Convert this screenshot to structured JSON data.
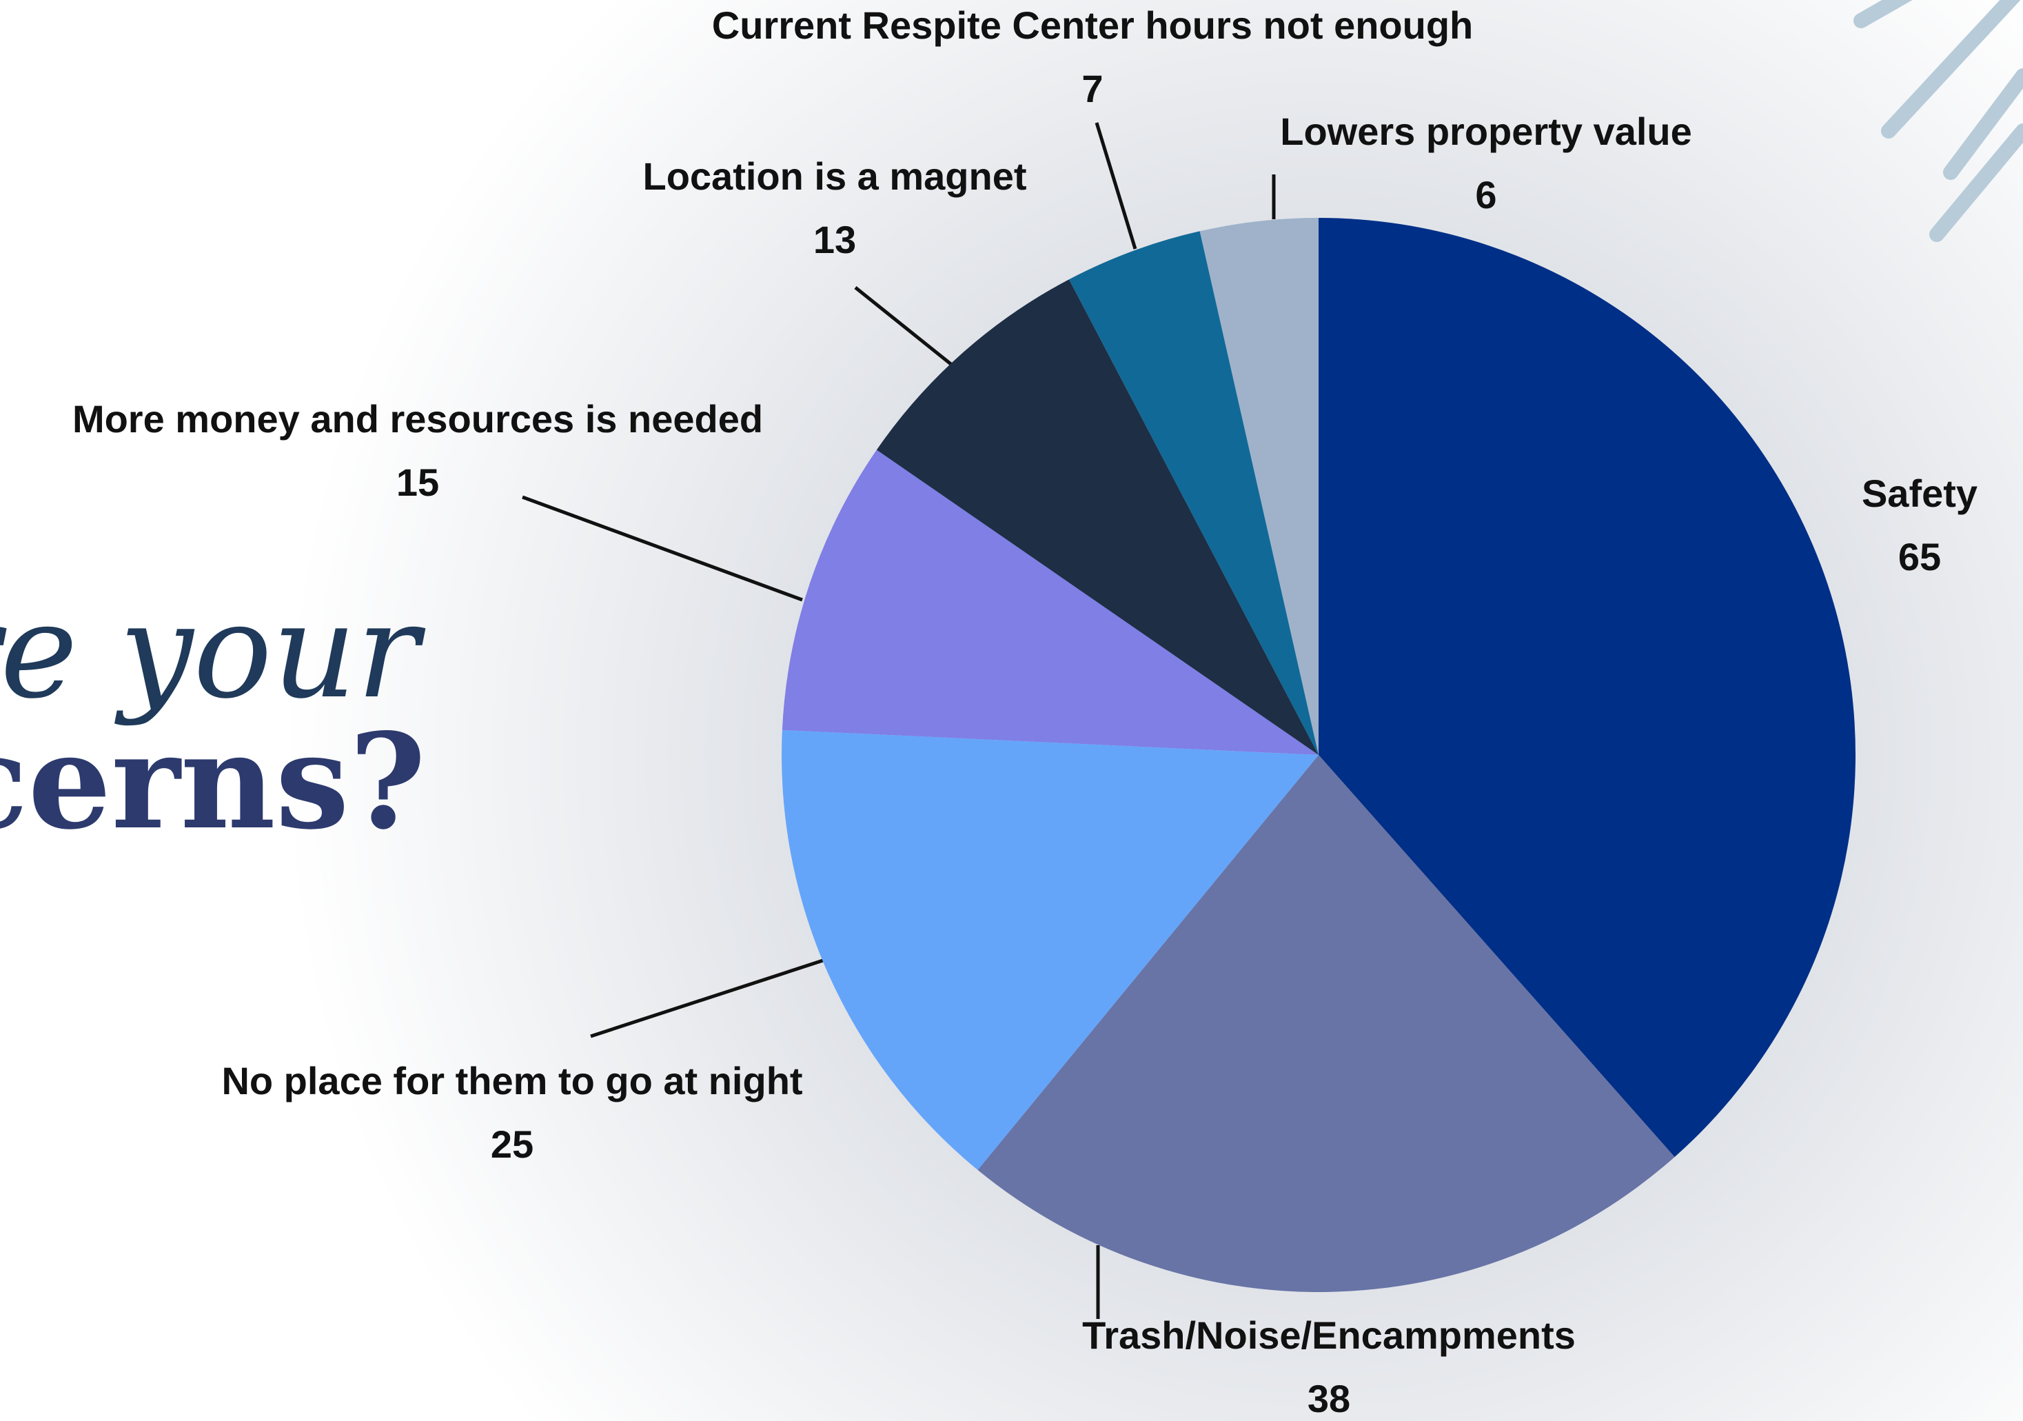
{
  "heading": {
    "line1": "re your",
    "line2": "ncerns?"
  },
  "chart_data": {
    "type": "pie",
    "categories": [
      "Safety",
      "Trash/Noise/Encampments",
      "No place for them to go at night",
      "More money and resources is needed",
      "Location is a magnet",
      "Current Respite Center hours not enough",
      "Lowers property value"
    ],
    "values": [
      65,
      38,
      25,
      15,
      13,
      7,
      6
    ],
    "colors": [
      "#002f87",
      "#6874a6",
      "#64a5fa",
      "#7f7fe6",
      "#1d2e45",
      "#116997",
      "#9fb2ca"
    ]
  }
}
